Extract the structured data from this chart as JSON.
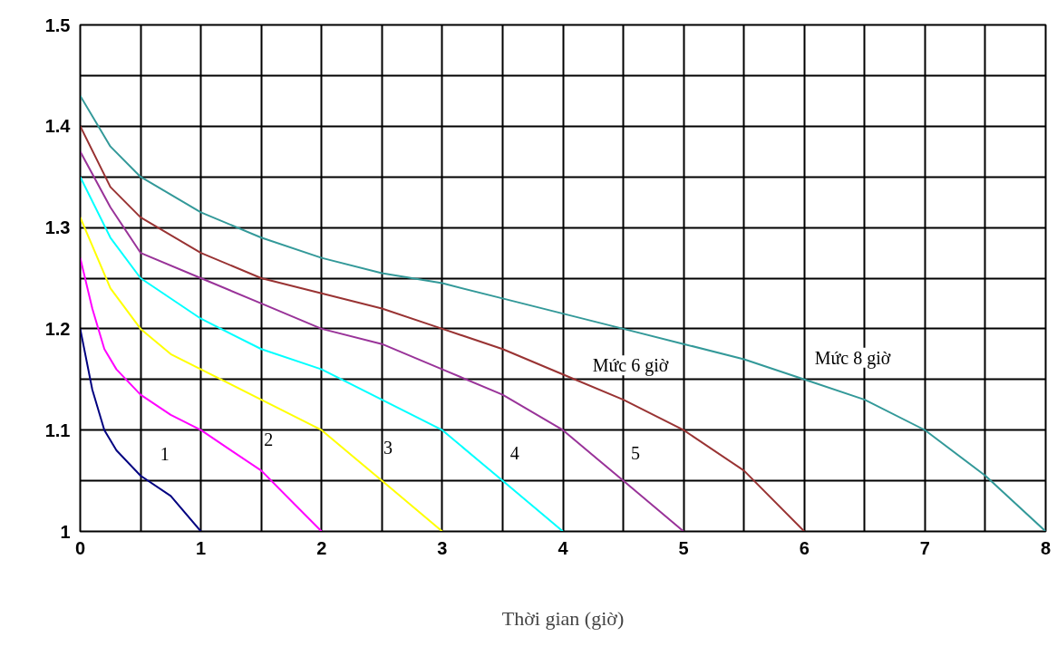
{
  "chart_data": {
    "type": "line",
    "xlabel": "Thời gian (giờ)",
    "grid": true,
    "line_style": "solid",
    "xlim": [
      0,
      8
    ],
    "ylim": [
      1,
      1.5
    ],
    "xticks": [
      0,
      {
        "value": 0.5,
        "label": null
      },
      1,
      {
        "value": 1.5,
        "label": null
      },
      2,
      {
        "value": 2.5,
        "label": null
      },
      3,
      {
        "value": 3.5,
        "label": null
      },
      4,
      {
        "value": 4.5,
        "label": null
      },
      5,
      {
        "value": 5.5,
        "label": null
      },
      6,
      {
        "value": 6.5,
        "label": null
      },
      7,
      {
        "value": 7.5,
        "label": null
      },
      8
    ],
    "yticks": [
      {
        "value": 1,
        "label": "1"
      },
      {
        "value": 1.05,
        "label": null
      },
      1.1,
      {
        "value": 1.15,
        "label": null
      },
      1.2,
      {
        "value": 1.25,
        "label": null
      },
      1.3,
      {
        "value": 1.35,
        "label": null
      },
      1.4,
      {
        "value": 1.45,
        "label": null
      },
      1.5
    ],
    "series": [
      {
        "name": "1",
        "color": "#000080",
        "x": [
          0,
          0.1,
          0.2,
          0.3,
          0.5,
          0.75,
          1
        ],
        "values": [
          1.2,
          1.14,
          1.1,
          1.08,
          1.055,
          1.035,
          1.0
        ]
      },
      {
        "name": "2",
        "color": "#ff00ff",
        "x": [
          0,
          0.1,
          0.2,
          0.3,
          0.5,
          0.75,
          1,
          1.25,
          1.5,
          1.75,
          2
        ],
        "values": [
          1.27,
          1.22,
          1.18,
          1.16,
          1.135,
          1.115,
          1.1,
          1.08,
          1.06,
          1.03,
          1.0
        ]
      },
      {
        "name": "3",
        "color": "#ffff00",
        "x": [
          0,
          0.25,
          0.5,
          0.75,
          1,
          1.5,
          2,
          2.5,
          3
        ],
        "values": [
          1.31,
          1.24,
          1.2,
          1.175,
          1.16,
          1.13,
          1.1,
          1.05,
          1.0
        ]
      },
      {
        "name": "4",
        "color": "#00ffff",
        "x": [
          0,
          0.25,
          0.5,
          1,
          1.5,
          2,
          2.5,
          3,
          3.5,
          4
        ],
        "values": [
          1.35,
          1.29,
          1.25,
          1.21,
          1.18,
          1.16,
          1.13,
          1.1,
          1.05,
          1.0
        ]
      },
      {
        "name": "5",
        "color": "#993399",
        "x": [
          0,
          0.25,
          0.5,
          1,
          1.5,
          2,
          2.5,
          3,
          3.5,
          4,
          4.5,
          5
        ],
        "values": [
          1.375,
          1.32,
          1.275,
          1.25,
          1.225,
          1.2,
          1.185,
          1.16,
          1.135,
          1.1,
          1.05,
          1.0
        ]
      },
      {
        "name": "Mức 6 giờ",
        "color": "#993333",
        "x": [
          0,
          0.25,
          0.5,
          1,
          1.5,
          2,
          2.5,
          3,
          3.5,
          4,
          4.5,
          5,
          5.5,
          6
        ],
        "values": [
          1.4,
          1.34,
          1.31,
          1.275,
          1.25,
          1.235,
          1.22,
          1.2,
          1.18,
          1.155,
          1.13,
          1.1,
          1.06,
          1.0
        ]
      },
      {
        "name": "Mức 8 giờ",
        "color": "#339999",
        "x": [
          0,
          0.25,
          0.5,
          1,
          1.5,
          2,
          2.5,
          3,
          3.5,
          4,
          4.5,
          5,
          5.5,
          6,
          6.5,
          7,
          7.5,
          8
        ],
        "values": [
          1.43,
          1.38,
          1.35,
          1.315,
          1.29,
          1.27,
          1.255,
          1.245,
          1.23,
          1.215,
          1.2,
          1.185,
          1.17,
          1.15,
          1.13,
          1.1,
          1.055,
          1.0
        ]
      }
    ]
  }
}
